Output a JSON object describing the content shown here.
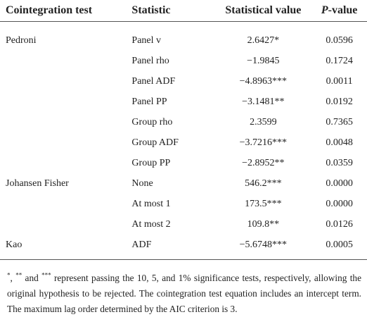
{
  "header": [
    "Cointegration test",
    "Statistic",
    "Statistical value",
    [
      "P",
      "-value"
    ]
  ],
  "groups": [
    {
      "name": "Pedroni",
      "rows": [
        [
          "Panel v",
          "2.6427*",
          "0.0596"
        ],
        [
          "Panel rho",
          "−1.9845",
          "0.1724"
        ],
        [
          "Panel ADF",
          "−4.8963***",
          "0.0011"
        ],
        [
          "Panel PP",
          "−3.1481**",
          "0.0192"
        ],
        [
          "Group rho",
          "2.3599",
          "0.7365"
        ],
        [
          "Group ADF",
          "−3.7216***",
          "0.0048"
        ],
        [
          "Group PP",
          "−2.8952**",
          "0.0359"
        ]
      ]
    },
    {
      "name": "Johansen Fisher",
      "rows": [
        [
          "None",
          "546.2***",
          "0.0000"
        ],
        [
          "At most 1",
          "173.5***",
          "0.0000"
        ],
        [
          "At most 2",
          "109.8**",
          "0.0126"
        ]
      ]
    },
    {
      "name": "Kao",
      "rows": [
        [
          "ADF",
          "−5.6748***",
          "0.0005"
        ]
      ]
    }
  ],
  "footnote": [
    "*",
    ", ",
    "**",
    " and ",
    "***",
    " represent passing the 10, 5, and 1% significance tests, respectively, allowing the original hypothesis to be rejected. The cointegration test equation includes an intercept term. The maximum lag order determined by the AIC criterion is 3."
  ]
}
